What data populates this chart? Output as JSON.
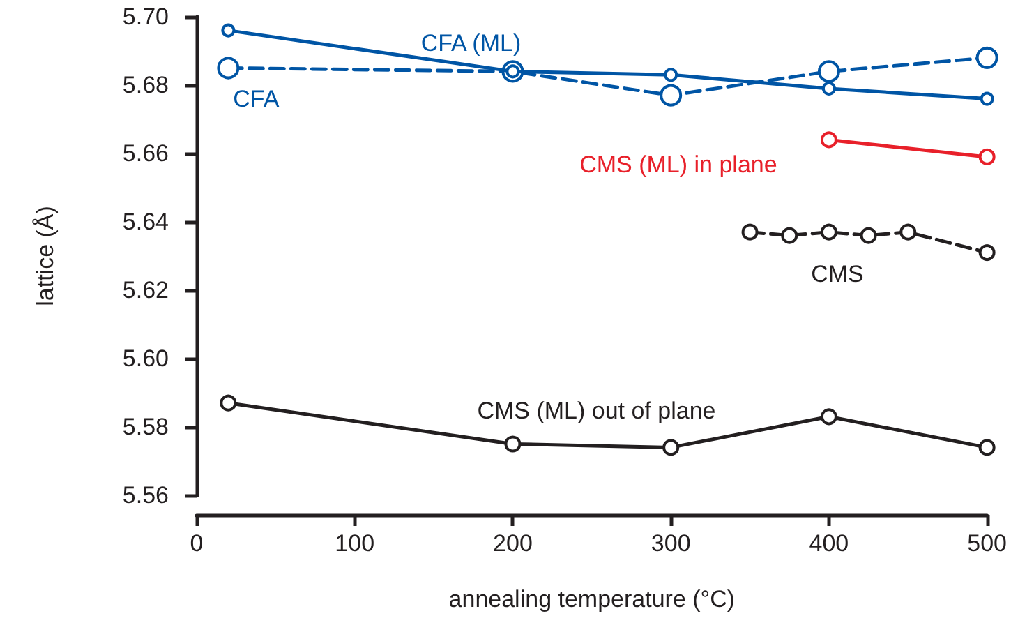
{
  "chart_data": {
    "type": "line",
    "xlabel": "annealing temperature (°C)",
    "ylabel": "lattice (Å)",
    "xlim": [
      0,
      500
    ],
    "xticks": [
      0,
      100,
      200,
      300,
      400,
      500
    ],
    "ylim": [
      5.56,
      5.7
    ],
    "yticks": [
      5.56,
      5.58,
      {
        "value": 5.6,
        "label": "5.60"
      },
      5.62,
      5.64,
      5.66,
      5.68,
      {
        "value": 5.7,
        "label": "5.70"
      }
    ],
    "grid": false,
    "legend": false,
    "marker": "circle",
    "series": [
      {
        "name": "CFA (ML)",
        "color": "#0055a5",
        "line_style": "solid",
        "x": [
          20,
          200,
          300,
          400,
          500
        ],
        "values": [
          5.696,
          5.684,
          5.683,
          5.679,
          5.676
        ]
      },
      {
        "name": "CFA",
        "color": "#0055a5",
        "line_style": "dashed",
        "x": [
          20,
          200,
          300,
          400,
          500
        ],
        "values": [
          5.685,
          5.684,
          5.677,
          5.684,
          5.688
        ]
      },
      {
        "name": "CMS (ML) in plane",
        "color": "#e8202a",
        "line_style": "solid",
        "x": [
          400,
          500
        ],
        "values": [
          5.664,
          5.659
        ]
      },
      {
        "name": "CMS",
        "color": "#231f20",
        "line_style": "dashed",
        "x": [
          350,
          375,
          400,
          425,
          450,
          500
        ],
        "values": [
          5.637,
          5.636,
          5.637,
          5.636,
          5.637,
          5.631
        ]
      },
      {
        "name": "CMS (ML) out of plane",
        "color": "#231f20",
        "line_style": "solid",
        "x": [
          20,
          200,
          300,
          400,
          500
        ],
        "values": [
          5.587,
          5.575,
          5.574,
          5.583,
          5.574
        ]
      }
    ]
  }
}
